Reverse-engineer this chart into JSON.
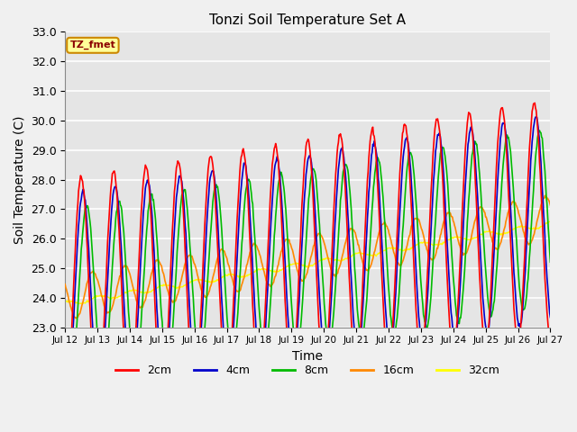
{
  "title": "Tonzi Soil Temperature Set A",
  "xlabel": "Time",
  "ylabel": "Soil Temperature (C)",
  "ylim": [
    23.0,
    33.0
  ],
  "yticks": [
    23.0,
    24.0,
    25.0,
    26.0,
    27.0,
    28.0,
    29.0,
    30.0,
    31.0,
    32.0,
    33.0
  ],
  "xtick_labels": [
    "Jul 12",
    "Jul 13",
    "Jul 14",
    "Jul 15",
    "Jul 16",
    "Jul 17",
    "Jul 18",
    "Jul 19",
    "Jul 20",
    "Jul 21",
    "Jul 22",
    "Jul 23",
    "Jul 24",
    "Jul 25",
    "Jul 26",
    "Jul 27"
  ],
  "colors": {
    "2cm": "#ff0000",
    "4cm": "#0000cc",
    "8cm": "#00bb00",
    "16cm": "#ff8800",
    "32cm": "#ffff00"
  },
  "annotation": "TZ_fmet",
  "legend_box_facecolor": "#ffff99",
  "legend_box_edgecolor": "#cc8800",
  "plot_bg": "#e5e5e5",
  "fig_bg": "#f0f0f0",
  "grid_color": "#ffffff",
  "figsize": [
    6.4,
    4.8
  ],
  "dpi": 100
}
